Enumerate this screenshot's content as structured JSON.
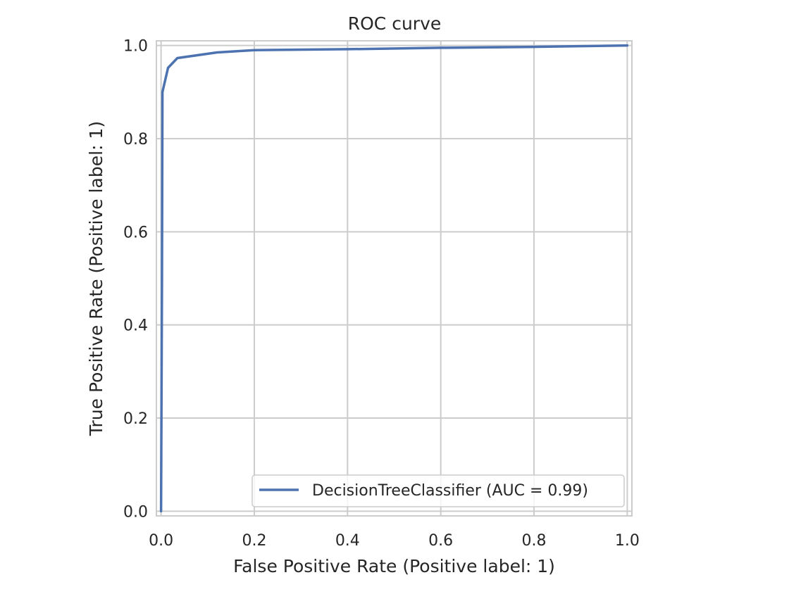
{
  "chart_data": {
    "type": "line",
    "title": "ROC curve",
    "xlabel": "False Positive Rate (Positive label: 1)",
    "ylabel": "True Positive Rate (Positive label: 1)",
    "xlim": [
      -0.01,
      1.01
    ],
    "ylim": [
      -0.01,
      1.01
    ],
    "x_ticks": [
      0.0,
      0.2,
      0.4,
      0.6,
      0.8,
      1.0
    ],
    "y_ticks": [
      0.0,
      0.2,
      0.4,
      0.6,
      0.8,
      1.0
    ],
    "x_tick_labels": [
      "0.0",
      "0.2",
      "0.4",
      "0.6",
      "0.8",
      "1.0"
    ],
    "y_tick_labels": [
      "0.0",
      "0.2",
      "0.4",
      "0.6",
      "0.8",
      "1.0"
    ],
    "grid": true,
    "legend_position": "lower-right",
    "series": [
      {
        "name": "DecisionTreeClassifier (AUC = 0.99)",
        "color": "#4c72b0",
        "x": [
          0.0,
          0.002,
          0.003,
          0.015,
          0.035,
          0.12,
          0.2,
          0.4,
          0.6,
          0.8,
          1.0
        ],
        "y": [
          0.0,
          0.5,
          0.9,
          0.952,
          0.973,
          0.985,
          0.99,
          0.992,
          0.995,
          0.997,
          1.0
        ]
      }
    ]
  }
}
